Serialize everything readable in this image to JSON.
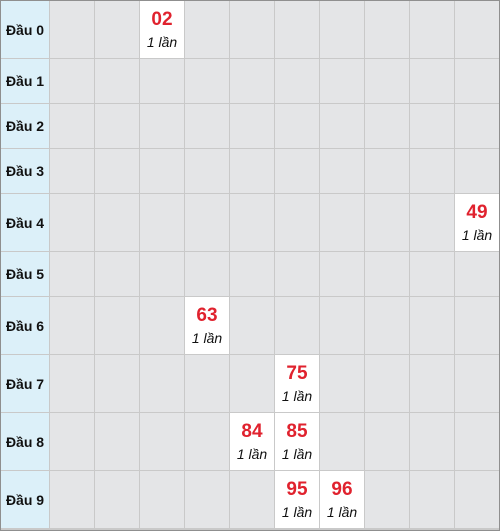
{
  "rows": [
    {
      "label": "Đầu 0",
      "cells": [
        null,
        null,
        {
          "number": "02",
          "count": "1 lần"
        },
        null,
        null,
        null,
        null,
        null,
        null,
        null
      ]
    },
    {
      "label": "Đầu 1",
      "cells": [
        null,
        null,
        null,
        null,
        null,
        null,
        null,
        null,
        null,
        null
      ]
    },
    {
      "label": "Đầu 2",
      "cells": [
        null,
        null,
        null,
        null,
        null,
        null,
        null,
        null,
        null,
        null
      ]
    },
    {
      "label": "Đầu 3",
      "cells": [
        null,
        null,
        null,
        null,
        null,
        null,
        null,
        null,
        null,
        null
      ]
    },
    {
      "label": "Đầu 4",
      "cells": [
        null,
        null,
        null,
        null,
        null,
        null,
        null,
        null,
        null,
        {
          "number": "49",
          "count": "1 lần"
        }
      ]
    },
    {
      "label": "Đầu 5",
      "cells": [
        null,
        null,
        null,
        null,
        null,
        null,
        null,
        null,
        null,
        null
      ]
    },
    {
      "label": "Đầu 6",
      "cells": [
        null,
        null,
        null,
        {
          "number": "63",
          "count": "1 lần"
        },
        null,
        null,
        null,
        null,
        null,
        null
      ]
    },
    {
      "label": "Đầu 7",
      "cells": [
        null,
        null,
        null,
        null,
        null,
        {
          "number": "75",
          "count": "1 lần"
        },
        null,
        null,
        null,
        null
      ]
    },
    {
      "label": "Đầu 8",
      "cells": [
        null,
        null,
        null,
        null,
        {
          "number": "84",
          "count": "1 lần"
        },
        {
          "number": "85",
          "count": "1 lần"
        },
        null,
        null,
        null,
        null
      ]
    },
    {
      "label": "Đầu 9",
      "cells": [
        null,
        null,
        null,
        null,
        null,
        {
          "number": "95",
          "count": "1 lần"
        },
        {
          "number": "96",
          "count": "1 lần"
        },
        null,
        null,
        null
      ]
    }
  ]
}
